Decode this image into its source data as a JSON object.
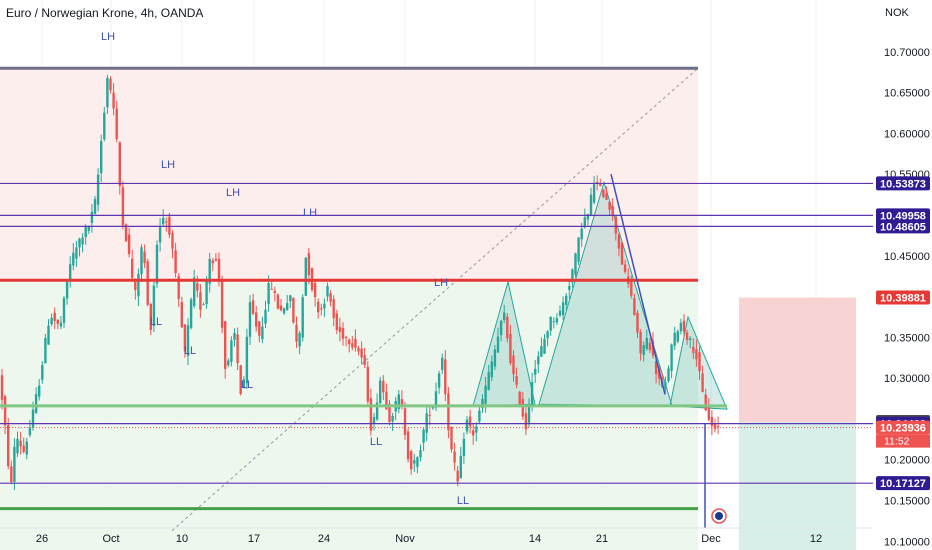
{
  "header": {
    "title": "Euro / Norwegian Krone, 4h, OANDA",
    "currency": "NOK"
  },
  "chart_data": {
    "type": "candlestick",
    "title": "Euro / Norwegian Krone, 4h, OANDA",
    "ylabel": "NOK",
    "ylim": [
      10.095,
      10.735
    ],
    "y_ticks": [
      "10.70000",
      "10.65000",
      "10.60000",
      "10.55000",
      "10.45000",
      "10.35000",
      "10.30000",
      "10.20000",
      "10.15000",
      "10.10000"
    ],
    "x_ticks": [
      "26",
      "Oct",
      "10",
      "17",
      "24",
      "Nov",
      "14",
      "21",
      "Dec",
      "12"
    ],
    "price_tags": [
      {
        "label": "10.53873",
        "value": 10.53873,
        "color": "#311b92"
      },
      {
        "label": "10.49958",
        "value": 10.49958,
        "color": "#311b92"
      },
      {
        "label": "10.48605",
        "value": 10.48605,
        "color": "#311b92"
      },
      {
        "label": "10.39881",
        "value": 10.39881,
        "color": "#e53935"
      },
      {
        "label": "10.24626",
        "value": 10.24626,
        "color": "#4a4a4a"
      },
      {
        "label": "10.24423",
        "value": 10.24423,
        "color": "#311b92"
      },
      {
        "label": "10.23936",
        "value": 10.23936,
        "color": "#ef5350"
      },
      {
        "label": "10.17127",
        "value": 10.17127,
        "color": "#311b92"
      }
    ],
    "countdown": "11:52",
    "horizontal_lines": [
      {
        "value": 10.68,
        "color": "#6c6f85"
      },
      {
        "value": 10.53873,
        "color": "#5e35b1"
      },
      {
        "value": 10.49958,
        "color": "#5e35b1"
      },
      {
        "value": 10.48605,
        "color": "#5e35b1"
      },
      {
        "value": 10.42,
        "color": "#e53935"
      },
      {
        "value": 10.266,
        "color": "#81c784"
      },
      {
        "value": 10.24423,
        "color": "#5e35b1"
      },
      {
        "value": 10.17127,
        "color": "#5e35b1"
      },
      {
        "value": 10.14,
        "color": "#43a047"
      }
    ],
    "annotations": [
      "LH",
      "LH",
      "LH",
      "LH",
      "LH",
      "LL",
      "LL",
      "LL",
      "LL",
      "LL"
    ],
    "position": {
      "stop": 10.39881,
      "entry": 10.24626,
      "target": 10.095
    }
  },
  "colors": {
    "up": "#26a69a",
    "down": "#ef5350",
    "resistance_zone": "#fdeeee",
    "support_zone": "#eef7ee"
  }
}
